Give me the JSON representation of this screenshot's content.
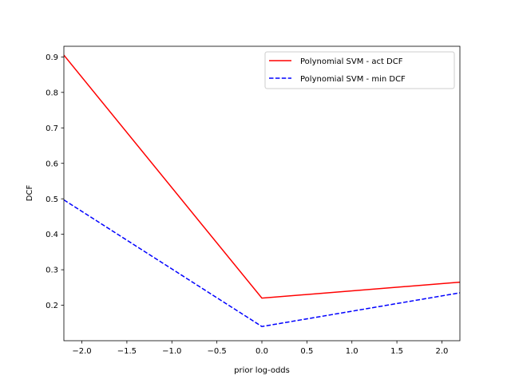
{
  "chart_data": {
    "type": "line",
    "title": "",
    "xlabel": "prior log-odds",
    "ylabel": "DCF",
    "xlim": [
      -2.2,
      2.2
    ],
    "ylim": [
      0.1,
      0.93
    ],
    "xticks": [
      -2.0,
      -1.5,
      -1.0,
      -0.5,
      0.0,
      0.5,
      1.0,
      1.5,
      2.0
    ],
    "xtick_labels": [
      "−2.0",
      "−1.5",
      "−1.0",
      "−0.5",
      "0.0",
      "0.5",
      "1.0",
      "1.5",
      "2.0"
    ],
    "yticks": [
      0.2,
      0.3,
      0.4,
      0.5,
      0.6,
      0.7,
      0.8,
      0.9
    ],
    "ytick_labels": [
      "0.2",
      "0.3",
      "0.4",
      "0.5",
      "0.6",
      "0.7",
      "0.8",
      "0.9"
    ],
    "grid": false,
    "legend_position": "top-right",
    "series": [
      {
        "name": "Polynomial SVM  - act DCF",
        "color": "#ff0000",
        "style": "solid",
        "x": [
          -2.2,
          0.0,
          2.2
        ],
        "y": [
          0.905,
          0.22,
          0.265
        ]
      },
      {
        "name": "Polynomial SVM  - min DCF",
        "color": "#0000ff",
        "style": "dashed",
        "x": [
          -2.2,
          0.0,
          2.2
        ],
        "y": [
          0.497,
          0.14,
          0.235
        ]
      }
    ]
  }
}
